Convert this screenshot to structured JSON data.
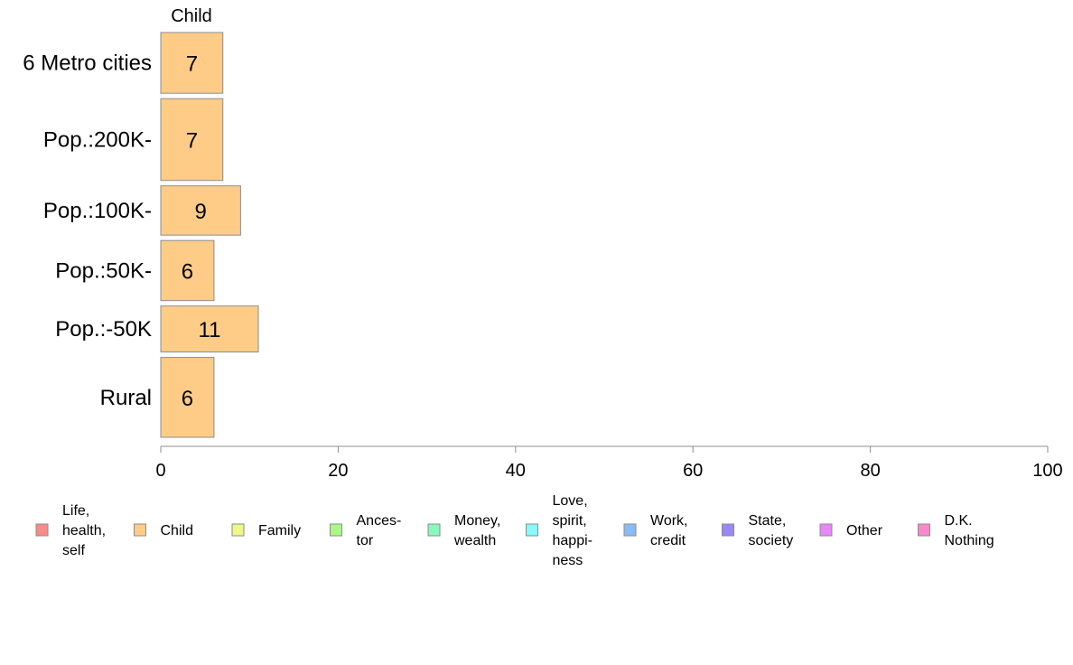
{
  "chart_data": {
    "type": "bar",
    "orientation": "horizontal",
    "series_title": "Child",
    "categories": [
      "6 Metro cities",
      "Pop.:200K-",
      "Pop.:100K-",
      "Pop.:50K-",
      "Pop.:-50K",
      "Rural"
    ],
    "values": [
      7,
      7,
      9,
      6,
      11,
      6
    ],
    "row_weights": [
      0.95,
      1.28,
      0.77,
      0.94,
      0.72,
      1.25
    ],
    "bar_color": "#FFCC88",
    "xlim": [
      0,
      100
    ],
    "xticks": [
      0,
      20,
      40,
      60,
      80,
      100
    ],
    "grid": false,
    "legend_position": "bottom",
    "legend": [
      {
        "lines": [
          "Life,",
          "health,",
          "self"
        ],
        "color": "#F88A8A"
      },
      {
        "lines": [
          "Child"
        ],
        "color": "#FFCC88"
      },
      {
        "lines": [
          "Family"
        ],
        "color": "#EEF888"
      },
      {
        "lines": [
          "Ances-",
          "tor"
        ],
        "color": "#AAF888"
      },
      {
        "lines": [
          "Money,",
          "wealth"
        ],
        "color": "#88F8BB"
      },
      {
        "lines": [
          "Love,",
          "spirit,",
          "happi-",
          "ness"
        ],
        "color": "#88F8F8"
      },
      {
        "lines": [
          "Work,",
          "credit"
        ],
        "color": "#88BBF8"
      },
      {
        "lines": [
          "State,",
          "society"
        ],
        "color": "#9988F8"
      },
      {
        "lines": [
          "Other"
        ],
        "color": "#E888F8"
      },
      {
        "lines": [
          "D.K.",
          "Nothing"
        ],
        "color": "#F888CC"
      }
    ]
  }
}
